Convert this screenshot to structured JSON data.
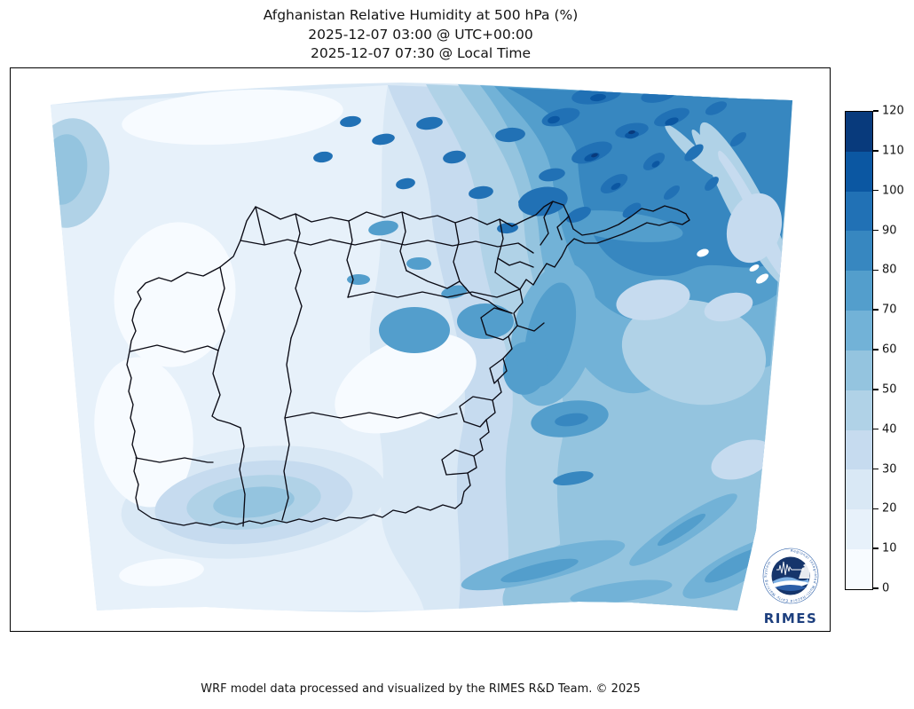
{
  "header": {
    "title_line1": "Afghanistan Relative Humidity at 500 hPa (%)",
    "title_line2": "2025-12-07 03:00 @ UTC+00:00",
    "title_line3": "2025-12-07 07:30 @ Local Time"
  },
  "footer": {
    "credit": "WRF model data processed and visualized by the RIMES R&D Team. © 2025"
  },
  "logo": {
    "wordmark": "RIMES",
    "ring_text": "Regional Integrated Multi-Hazard Early Warning System",
    "navy": "#16356b",
    "blue": "#2b5ea7"
  },
  "colorbar": {
    "min": 0,
    "max": 120,
    "step": 10,
    "ticks": [
      0,
      10,
      20,
      30,
      40,
      50,
      60,
      70,
      80,
      90,
      100,
      110,
      120
    ],
    "colors_top_to_bottom": [
      "#083a7c",
      "#0b57a2",
      "#2171b5",
      "#3787c0",
      "#539ecc",
      "#72b2d7",
      "#94c4df",
      "#b0d2e7",
      "#c6dbef",
      "#d9e8f5",
      "#e7f1fa",
      "#f7fbff"
    ]
  },
  "chart_data": {
    "type": "heatmap",
    "title": "Afghanistan Relative Humidity at 500 hPa (%)",
    "variable": "Relative Humidity",
    "pressure_level": "500 hPa",
    "units": "%",
    "region": "Afghanistan and surroundings (WRF model domain, curved Lambert-style grid)",
    "valid_time_utc": "2025-12-07 03:00 @ UTC+00:00",
    "valid_time_local": "2025-12-07 07:30 @ Local Time",
    "colormap": "Blues (discrete, 12 levels)",
    "value_range": [
      0,
      120
    ],
    "contour_levels": [
      0,
      10,
      20,
      30,
      40,
      50,
      60,
      70,
      80,
      90,
      100,
      110,
      120
    ],
    "legend_position": "right vertical colorbar",
    "overlays": [
      "Afghanistan province boundaries (black lines)"
    ],
    "pattern_summary": [
      {
        "area": "northeast / Pamir and Badakhshan",
        "approx_value_pct": "80-110, darkest cores near top centre-right"
      },
      {
        "area": "north-central provinces",
        "approx_value_pct": "70-95"
      },
      {
        "area": "eastern mountain ridge (Kabul-Kunar)",
        "approx_value_pct": "60-85"
      },
      {
        "area": "central highlands",
        "approx_value_pct": "40-70"
      },
      {
        "area": "west and southwest deserts",
        "approx_value_pct": "0-30"
      },
      {
        "area": "local maximum over southern Helmand border",
        "approx_value_pct": "50-60"
      },
      {
        "area": "southeast corner diagonal moist bands",
        "approx_value_pct": "60-85"
      },
      {
        "area": "pale dry streaks northeast of the border (upper right)",
        "approx_value_pct": "20-40"
      },
      {
        "area": "tiny saturated white spots near upper-right edge",
        "approx_value_pct": "off-scale"
      }
    ]
  }
}
